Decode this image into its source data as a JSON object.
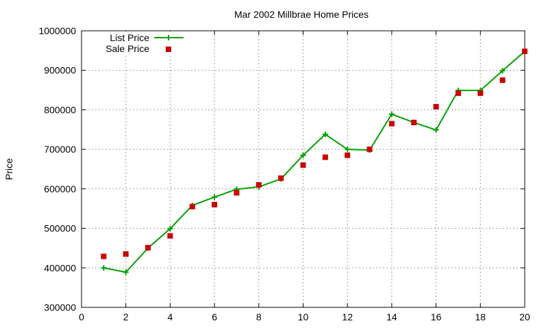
{
  "chart_data": {
    "type": "line",
    "title": "Mar 2002 Millbrae Home Prices",
    "xlabel": "",
    "ylabel": "Price",
    "xlim": [
      0,
      20
    ],
    "ylim": [
      300000,
      1000000
    ],
    "xticks": [
      0,
      2,
      4,
      6,
      8,
      10,
      12,
      14,
      16,
      18,
      20
    ],
    "yticks": [
      300000,
      400000,
      500000,
      600000,
      700000,
      800000,
      900000,
      1000000
    ],
    "grid": true,
    "legend_position": "top-left",
    "series": [
      {
        "name": "List Price",
        "style": "line-with-plus-markers",
        "color": "#00a000",
        "x": [
          1,
          2,
          3,
          4,
          5,
          6,
          7,
          8,
          9,
          10,
          11,
          12,
          13,
          14,
          15,
          16,
          17,
          18,
          19,
          20
        ],
        "y": [
          400000,
          389000,
          450000,
          499000,
          558000,
          579000,
          599000,
          605000,
          625000,
          685000,
          738000,
          700000,
          698000,
          789000,
          768000,
          749000,
          849000,
          849000,
          899000,
          948000
        ]
      },
      {
        "name": "Sale Price",
        "style": "square-markers",
        "color": "#cc0000",
        "x": [
          1,
          2,
          3,
          4,
          5,
          6,
          7,
          8,
          9,
          10,
          11,
          12,
          13,
          14,
          15,
          16,
          17,
          18,
          19,
          20
        ],
        "y": [
          429000,
          435000,
          451000,
          481000,
          555000,
          560000,
          590000,
          610000,
          627000,
          660000,
          680000,
          685000,
          700000,
          765000,
          768000,
          808000,
          842000,
          842000,
          875000,
          948000
        ]
      }
    ]
  }
}
